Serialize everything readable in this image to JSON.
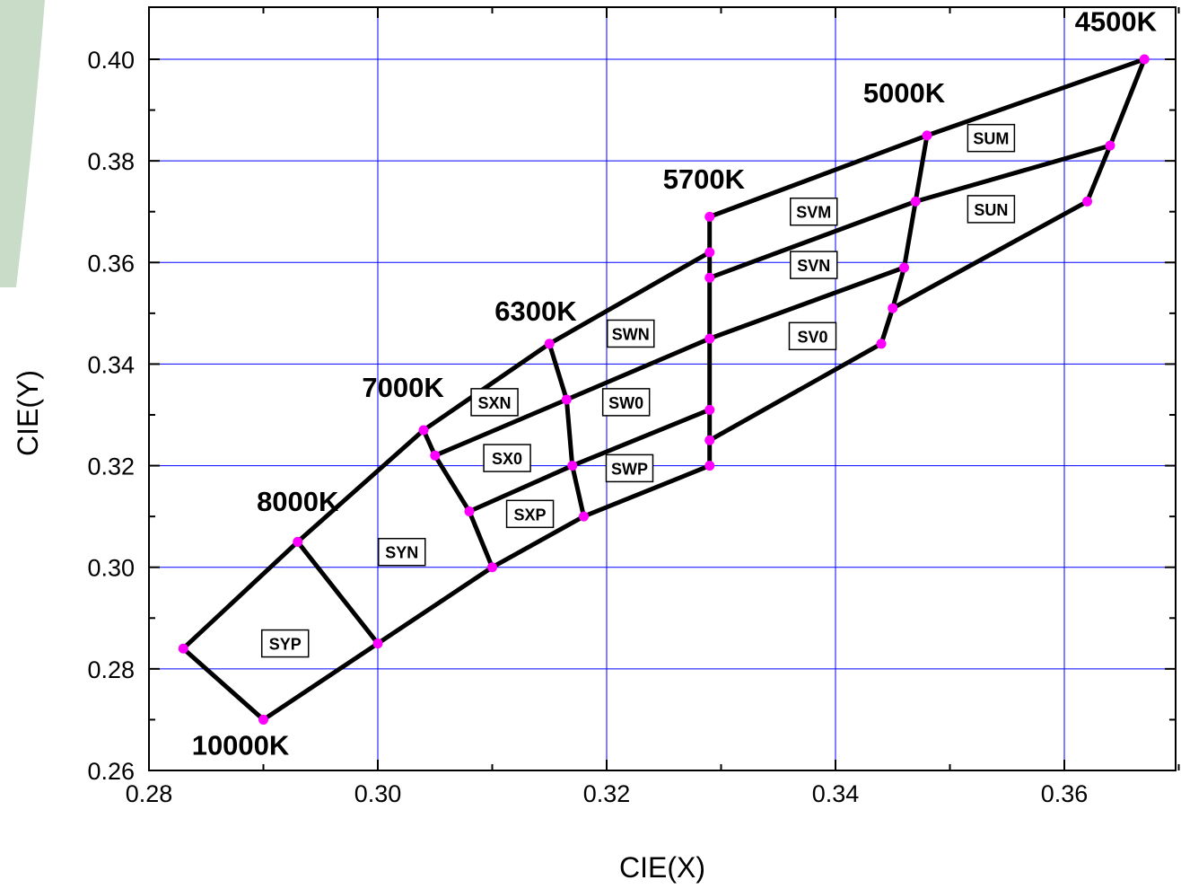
{
  "chart_data": {
    "type": "line",
    "xlabel": "CIE(X)",
    "ylabel": "CIE(Y)",
    "xlim": [
      0.28,
      0.37
    ],
    "ylim": [
      0.26,
      0.41
    ],
    "x_ticks": [
      "0.28",
      "0.30",
      "0.32",
      "0.34",
      "0.36"
    ],
    "y_ticks": [
      "0.26",
      "0.28",
      "0.30",
      "0.32",
      "0.34",
      "0.36",
      "0.38",
      "0.40"
    ],
    "grid": true,
    "colors": {
      "grid": "#0000ff",
      "lines": "#000000",
      "points": "#ff00ff",
      "background_accent": "#c8dcc8"
    },
    "points": [
      [
        0.283,
        0.284
      ],
      [
        0.29,
        0.27
      ],
      [
        0.293,
        0.305
      ],
      [
        0.3,
        0.285
      ],
      [
        0.304,
        0.327
      ],
      [
        0.305,
        0.322
      ],
      [
        0.308,
        0.311
      ],
      [
        0.31,
        0.3
      ],
      [
        0.315,
        0.344
      ],
      [
        0.3165,
        0.333
      ],
      [
        0.317,
        0.32
      ],
      [
        0.318,
        0.31
      ],
      [
        0.329,
        0.369
      ],
      [
        0.329,
        0.362
      ],
      [
        0.329,
        0.357
      ],
      [
        0.329,
        0.345
      ],
      [
        0.329,
        0.331
      ],
      [
        0.329,
        0.325
      ],
      [
        0.329,
        0.32
      ],
      [
        0.344,
        0.344
      ],
      [
        0.345,
        0.351
      ],
      [
        0.346,
        0.359
      ],
      [
        0.347,
        0.372
      ],
      [
        0.348,
        0.385
      ],
      [
        0.362,
        0.372
      ],
      [
        0.364,
        0.383
      ],
      [
        0.367,
        0.4
      ]
    ],
    "segments": [
      [
        [
          0.283,
          0.284
        ],
        [
          0.293,
          0.305
        ],
        [
          0.304,
          0.327
        ],
        [
          0.315,
          0.344
        ],
        [
          0.329,
          0.362
        ]
      ],
      [
        [
          0.329,
          0.369
        ],
        [
          0.348,
          0.385
        ],
        [
          0.367,
          0.4
        ]
      ],
      [
        [
          0.283,
          0.284
        ],
        [
          0.29,
          0.27
        ],
        [
          0.3,
          0.285
        ],
        [
          0.31,
          0.3
        ],
        [
          0.318,
          0.31
        ],
        [
          0.329,
          0.32
        ]
      ],
      [
        [
          0.329,
          0.325
        ],
        [
          0.344,
          0.344
        ],
        [
          0.345,
          0.351
        ],
        [
          0.362,
          0.372
        ],
        [
          0.364,
          0.383
        ],
        [
          0.367,
          0.4
        ]
      ],
      [
        [
          0.293,
          0.305
        ],
        [
          0.3,
          0.285
        ]
      ],
      [
        [
          0.304,
          0.327
        ],
        [
          0.305,
          0.322
        ],
        [
          0.308,
          0.311
        ],
        [
          0.31,
          0.3
        ]
      ],
      [
        [
          0.315,
          0.344
        ],
        [
          0.3165,
          0.333
        ],
        [
          0.317,
          0.32
        ],
        [
          0.318,
          0.31
        ]
      ],
      [
        [
          0.329,
          0.369
        ],
        [
          0.329,
          0.32
        ]
      ],
      [
        [
          0.348,
          0.385
        ],
        [
          0.347,
          0.372
        ],
        [
          0.346,
          0.359
        ],
        [
          0.345,
          0.351
        ],
        [
          0.344,
          0.344
        ]
      ],
      [
        [
          0.305,
          0.322
        ],
        [
          0.3165,
          0.333
        ],
        [
          0.329,
          0.345
        ],
        [
          0.346,
          0.359
        ]
      ],
      [
        [
          0.308,
          0.311
        ],
        [
          0.317,
          0.32
        ],
        [
          0.329,
          0.331
        ]
      ],
      [
        [
          0.329,
          0.357
        ],
        [
          0.347,
          0.372
        ],
        [
          0.364,
          0.383
        ]
      ]
    ],
    "cct_labels": [
      {
        "text": "4500K",
        "x": 0.3645,
        "y": 0.4075
      },
      {
        "text": "5000K",
        "x": 0.346,
        "y": 0.3935
      },
      {
        "text": "5700K",
        "x": 0.3285,
        "y": 0.3765
      },
      {
        "text": "6300K",
        "x": 0.3138,
        "y": 0.3505
      },
      {
        "text": "7000K",
        "x": 0.3022,
        "y": 0.3355
      },
      {
        "text": "8000K",
        "x": 0.293,
        "y": 0.313
      },
      {
        "text": "10000K",
        "x": 0.288,
        "y": 0.265
      }
    ],
    "bin_labels": [
      {
        "text": "SUM",
        "x": 0.3536,
        "y": 0.3845
      },
      {
        "text": "SUN",
        "x": 0.3536,
        "y": 0.3705
      },
      {
        "text": "SVM",
        "x": 0.3381,
        "y": 0.37
      },
      {
        "text": "SVN",
        "x": 0.3381,
        "y": 0.3595
      },
      {
        "text": "SV0",
        "x": 0.338,
        "y": 0.3455
      },
      {
        "text": "SWN",
        "x": 0.3221,
        "y": 0.346
      },
      {
        "text": "SW0",
        "x": 0.3217,
        "y": 0.3325
      },
      {
        "text": "SWP",
        "x": 0.322,
        "y": 0.3195
      },
      {
        "text": "SXN",
        "x": 0.3102,
        "y": 0.3325
      },
      {
        "text": "SX0",
        "x": 0.3113,
        "y": 0.3215
      },
      {
        "text": "SXP",
        "x": 0.3133,
        "y": 0.3105
      },
      {
        "text": "SYN",
        "x": 0.3021,
        "y": 0.303
      },
      {
        "text": "SYP",
        "x": 0.2919,
        "y": 0.285
      }
    ]
  }
}
